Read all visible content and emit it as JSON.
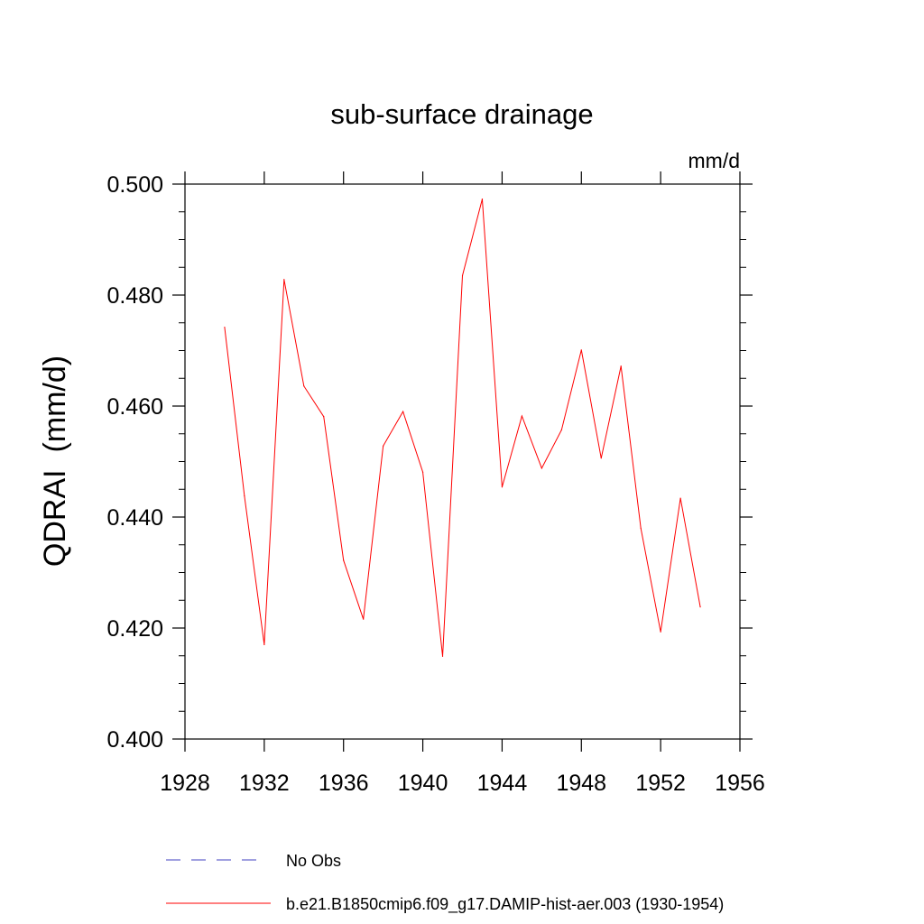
{
  "chart_data": {
    "type": "line",
    "title": "sub-surface drainage",
    "units": "mm/d",
    "ylabel": "QDRAI  (mm/d)",
    "xlabel": "",
    "xlim": [
      1928,
      1956
    ],
    "ylim": [
      0.4,
      0.5
    ],
    "x_ticks": [
      1928,
      1932,
      1936,
      1940,
      1944,
      1948,
      1952,
      1956
    ],
    "x_tick_labels": [
      "1928",
      "1932",
      "1936",
      "1940",
      "1944",
      "1948",
      "1952",
      "1956"
    ],
    "y_ticks": [
      0.4,
      0.42,
      0.44,
      0.46,
      0.48,
      0.5
    ],
    "y_tick_labels": [
      "0.400",
      "0.420",
      "0.440",
      "0.460",
      "0.480",
      "0.500"
    ],
    "grid": false,
    "legend_position": "bottom",
    "series": [
      {
        "name": "b.e21.B1850cmip6.f09_g17.DAMIP-hist-aer.003 (1930-1954)",
        "color": "#ff0000",
        "style": "solid",
        "x": [
          1930,
          1931,
          1932,
          1933,
          1934,
          1935,
          1936,
          1937,
          1938,
          1939,
          1940,
          1941,
          1942,
          1943,
          1944,
          1945,
          1946,
          1947,
          1948,
          1949,
          1950,
          1951,
          1952,
          1953,
          1954
        ],
        "values": [
          0.4742,
          0.4438,
          0.417,
          0.4828,
          0.4636,
          0.4581,
          0.4322,
          0.4216,
          0.4528,
          0.459,
          0.4481,
          0.4149,
          0.4835,
          0.4973,
          0.4454,
          0.4582,
          0.4488,
          0.4557,
          0.4701,
          0.4506,
          0.4672,
          0.438,
          0.4193,
          0.4434,
          0.4238
        ]
      }
    ],
    "legend": [
      {
        "label": "No Obs",
        "color": "#4040c0",
        "style": "dashed"
      },
      {
        "label": "b.e21.B1850cmip6.f09_g17.DAMIP-hist-aer.003 (1930-1954)",
        "color": "#ff0000",
        "style": "solid"
      }
    ]
  }
}
